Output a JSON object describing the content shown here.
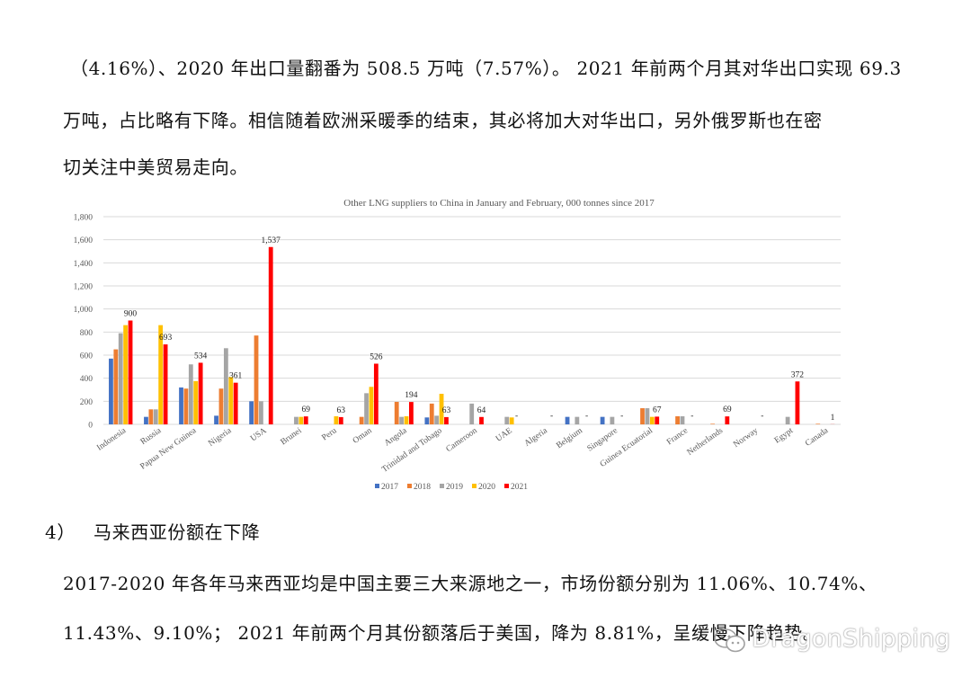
{
  "article": {
    "para1_line1": "（4.16%）、2020 年出口量翻番为 508.5 万吨（7.57%）。 2021 年前两个月其对华出口实现 69.3",
    "para1_line2": "万吨，占比略有下降。相信随着欧洲采暖季的结束，其必将加大对华出口，另外俄罗斯也在密",
    "para1_line3": "切关注中美贸易走向。",
    "section_number": "4）",
    "section_title": "马来西亚份额在下降",
    "para2_line1": "2017-2020 年各年马来西亚均是中国主要三大来源地之一，市场份额分别为 11.06%、10.74%、",
    "para2_line2": "11.43%、9.10%； 2021 年前两个月其份额落后于美国，降为 8.81%，呈缓慢下降趋势。"
  },
  "watermark": {
    "text": "DragonShipping",
    "icon": "wechat-logo-icon"
  },
  "colors": {
    "s2017": "#4472C4",
    "s2018": "#ED7D31",
    "s2019": "#A5A5A5",
    "s2020": "#FFC000",
    "s2021": "#FF0000",
    "grid": "#d9d9d9",
    "axis_text": "#595959"
  },
  "chart_data": {
    "type": "bar",
    "title": "Other LNG suppliers to China in January and February, 000 tonnes since 2017",
    "xlabel": "",
    "ylabel": "",
    "ylim": [
      0,
      1800
    ],
    "yticks": [
      "0",
      "200",
      "400",
      "600",
      "800",
      "1,000",
      "1,200",
      "1,400",
      "1,600",
      "1,800"
    ],
    "grid": true,
    "legend_position": "bottom",
    "categories": [
      "Indonesia",
      "Russia",
      "Papua New Guinea",
      "Nigeria",
      "USA",
      "Brunei",
      "Peru",
      "Oman",
      "Angola",
      "Trinidad and Tobago",
      "Cameroon",
      "UAE",
      "Algeria",
      "Belgium",
      "Singapore",
      "Guinea Ecuatorial",
      "France",
      "Netherlands",
      "Norway",
      "Egypt",
      "Canada"
    ],
    "series": [
      {
        "name": "2017",
        "values": [
          570,
          65,
          320,
          75,
          200,
          0,
          0,
          0,
          0,
          60,
          0,
          0,
          0,
          65,
          65,
          0,
          0,
          0,
          0,
          0,
          0
        ]
      },
      {
        "name": "2018",
        "values": [
          650,
          130,
          310,
          310,
          770,
          0,
          0,
          65,
          195,
          180,
          0,
          0,
          0,
          0,
          0,
          140,
          70,
          5,
          0,
          0,
          5
        ]
      },
      {
        "name": "2019",
        "values": [
          790,
          130,
          520,
          660,
          200,
          65,
          0,
          270,
          65,
          75,
          180,
          65,
          0,
          65,
          65,
          140,
          70,
          0,
          0,
          65,
          0
        ]
      },
      {
        "name": "2020",
        "values": [
          860,
          860,
          375,
          410,
          0,
          65,
          70,
          325,
          70,
          265,
          0,
          60,
          0,
          0,
          0,
          65,
          0,
          0,
          0,
          0,
          0
        ]
      },
      {
        "name": "2021",
        "values": [
          900,
          693,
          534,
          361,
          1537,
          69,
          63,
          526,
          194,
          63,
          64,
          0,
          0,
          0,
          0,
          67,
          0,
          69,
          0,
          372,
          1
        ]
      }
    ],
    "data_labels": [
      {
        "category": "Indonesia",
        "series": "2021",
        "text": "900"
      },
      {
        "category": "Russia",
        "series": "2021",
        "text": "693"
      },
      {
        "category": "Papua New Guinea",
        "series": "2021",
        "text": "534"
      },
      {
        "category": "Nigeria",
        "series": "2021",
        "text": "361"
      },
      {
        "category": "USA",
        "series": "2021",
        "text": "1,537"
      },
      {
        "category": "Brunei",
        "series": "2021",
        "text": "69"
      },
      {
        "category": "Peru",
        "series": "2021",
        "text": "63"
      },
      {
        "category": "Oman",
        "series": "2021",
        "text": "526"
      },
      {
        "category": "Angola",
        "series": "2021",
        "text": "194"
      },
      {
        "category": "Trinidad and Tobago",
        "series": "2021",
        "text": "63"
      },
      {
        "category": "Cameroon",
        "series": "2021",
        "text": "64"
      },
      {
        "category": "UAE",
        "series": "2021",
        "text": "-"
      },
      {
        "category": "Algeria",
        "series": "2021",
        "text": "-"
      },
      {
        "category": "Belgium",
        "series": "2021",
        "text": "-"
      },
      {
        "category": "Singapore",
        "series": "2021",
        "text": "-"
      },
      {
        "category": "Guinea Ecuatorial",
        "series": "2021",
        "text": "67"
      },
      {
        "category": "France",
        "series": "2021",
        "text": "-"
      },
      {
        "category": "Netherlands",
        "series": "2021",
        "text": "69"
      },
      {
        "category": "Norway",
        "series": "2021",
        "text": "-"
      },
      {
        "category": "Egypt",
        "series": "2021",
        "text": "372"
      },
      {
        "category": "Canada",
        "series": "2021",
        "text": "1"
      }
    ]
  }
}
